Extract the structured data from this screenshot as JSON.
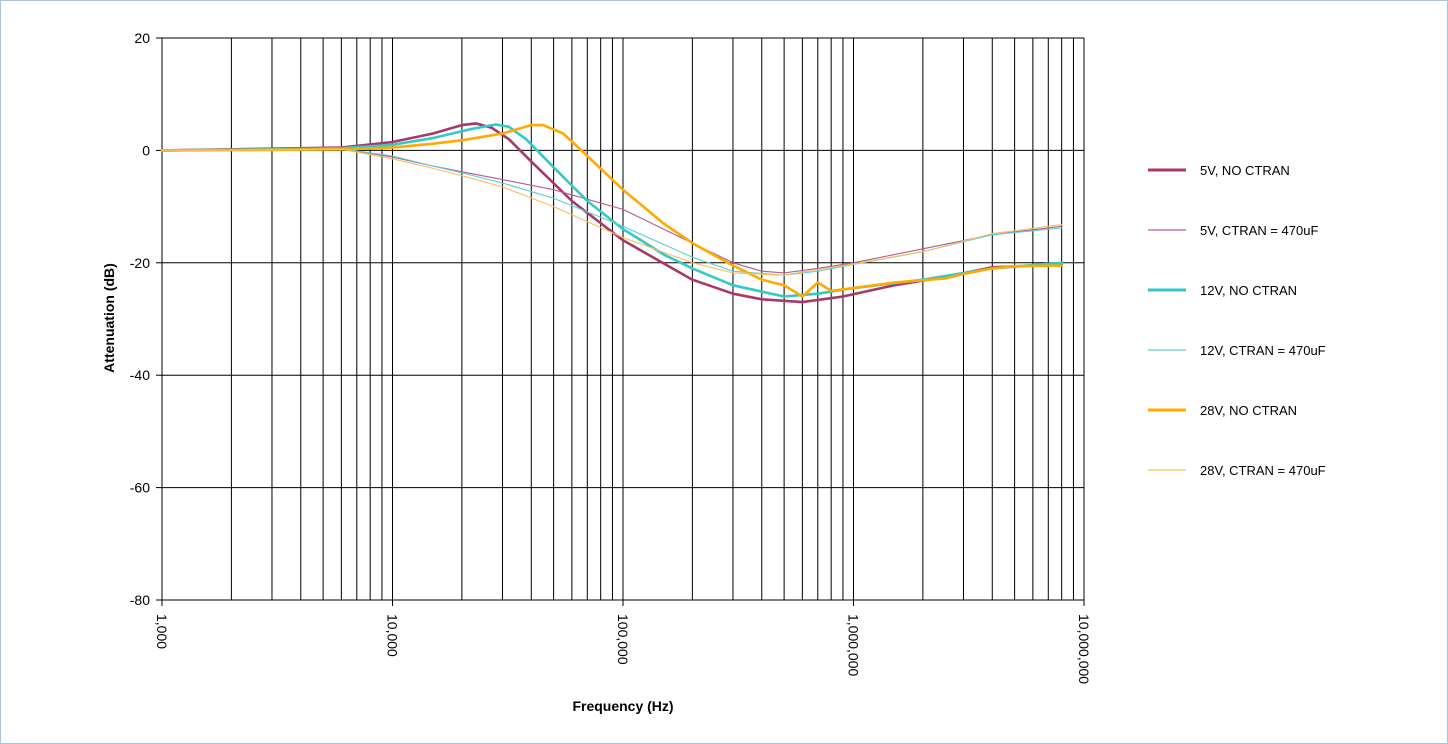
{
  "chart_data": {
    "type": "line",
    "title": "",
    "xlabel": "Frequency (Hz)",
    "ylabel": "Attenuation (dB)",
    "xscale": "log",
    "xlim": [
      1000,
      10000000
    ],
    "ylim": [
      -80,
      20
    ],
    "x_tick_labels": [
      "1,000",
      "10,000",
      "100,000",
      "1,000,000",
      "10,000,000"
    ],
    "y_tick_labels": [
      "20",
      "0",
      "-20",
      "-40",
      "-60",
      "-80"
    ],
    "grid": true,
    "legend_position": "right",
    "series": [
      {
        "name": "5V, NO CTRAN",
        "color": "#a8386b",
        "width": "thick",
        "x": [
          1000,
          3000,
          6000,
          10000,
          15000,
          20000,
          23000,
          27000,
          32000,
          40000,
          60000,
          100000,
          200000,
          300000,
          400000,
          600000,
          900000,
          1500000,
          2500000,
          4000000,
          8000000
        ],
        "y": [
          0,
          0.3,
          0.5,
          1.5,
          3,
          4.5,
          4.8,
          4.0,
          2.0,
          -2.0,
          -9,
          -16,
          -23,
          -25.5,
          -26.5,
          -27,
          -26,
          -24,
          -22.5,
          -20.8,
          -20.3
        ]
      },
      {
        "name": "5V, CTRAN = 470uF",
        "color": "#b55b91",
        "width": "thin",
        "x": [
          1000,
          3000,
          6000,
          10000,
          15000,
          20000,
          30000,
          50000,
          100000,
          200000,
          300000,
          400000,
          500000,
          700000,
          1000000,
          2000000,
          4000000,
          8000000
        ],
        "y": [
          0,
          0.3,
          0.3,
          -1.2,
          -2.8,
          -3.8,
          -5.2,
          -7,
          -10.5,
          -16.5,
          -20,
          -21.5,
          -21.8,
          -21,
          -20,
          -17.5,
          -15,
          -13.5
        ]
      },
      {
        "name": "12V, NO CTRAN",
        "color": "#33c9c9",
        "width": "thick",
        "x": [
          1000,
          3000,
          6000,
          10000,
          15000,
          22000,
          28000,
          32000,
          38000,
          50000,
          70000,
          100000,
          150000,
          200000,
          300000,
          500000,
          700000,
          1000000,
          2000000,
          4000000,
          8000000
        ],
        "y": [
          0,
          0.2,
          0.4,
          1.0,
          2.2,
          3.8,
          4.6,
          4.2,
          2.0,
          -3,
          -9,
          -14,
          -18.5,
          -21,
          -24,
          -26,
          -25.5,
          -24.5,
          -23,
          -21,
          -20
        ]
      },
      {
        "name": "12V, CTRAN = 470uF",
        "color": "#5fcfd0",
        "width": "thin",
        "x": [
          1000,
          3000,
          6000,
          10000,
          15000,
          20000,
          30000,
          50000,
          100000,
          200000,
          300000,
          500000,
          700000,
          1000000,
          2000000,
          4000000,
          8000000
        ],
        "y": [
          0,
          0.2,
          0.3,
          -1.0,
          -2.8,
          -4,
          -5.8,
          -8.5,
          -13.5,
          -19,
          -21.5,
          -22.2,
          -21.5,
          -20.3,
          -18,
          -15,
          -13.8
        ]
      },
      {
        "name": "28V, NO CTRAN",
        "color": "#ffaa00",
        "width": "thick",
        "x": [
          1000,
          3000,
          6000,
          10000,
          15000,
          20000,
          30000,
          40000,
          45000,
          55000,
          70000,
          100000,
          150000,
          200000,
          300000,
          400000,
          500000,
          600000,
          700000,
          800000,
          1000000,
          1500000,
          2500000,
          3000000,
          4000000,
          5000000,
          8000000
        ],
        "y": [
          0,
          0.1,
          0.2,
          0.5,
          1.2,
          1.8,
          3.0,
          4.5,
          4.5,
          3.0,
          -1,
          -7,
          -13,
          -16.5,
          -20.5,
          -23,
          -24,
          -26,
          -23.5,
          -25,
          -24.5,
          -23.5,
          -22.8,
          -22,
          -21,
          -20.6,
          -20.5
        ]
      },
      {
        "name": "28V, CTRAN = 470uF",
        "color": "#f8c060",
        "width": "thin",
        "x": [
          1000,
          3000,
          6000,
          10000,
          15000,
          20000,
          30000,
          50000,
          100000,
          200000,
          300000,
          500000,
          700000,
          1000000,
          2000000,
          4000000,
          8000000
        ],
        "y": [
          0,
          0.1,
          0.2,
          -1.5,
          -3.2,
          -4.5,
          -6.5,
          -10,
          -15.5,
          -20,
          -21.8,
          -22.2,
          -21.2,
          -20.2,
          -18,
          -14.8,
          -13.2
        ]
      }
    ]
  }
}
